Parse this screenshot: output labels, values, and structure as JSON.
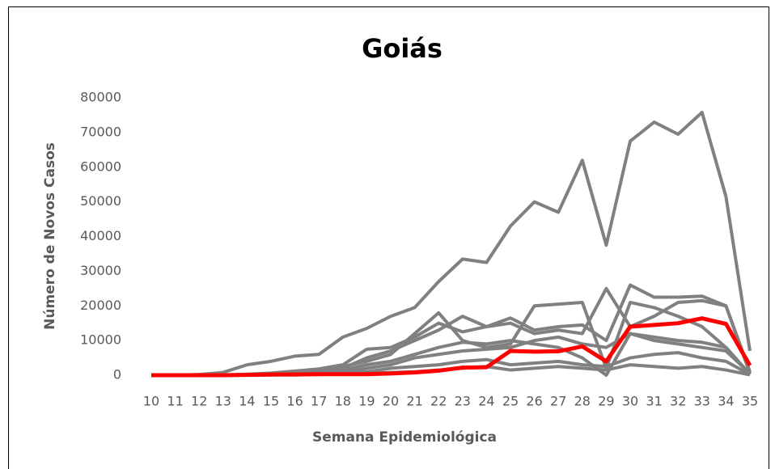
{
  "chart_data": {
    "type": "line",
    "title": "Goiás",
    "x_label": "Semana Epidemiológica",
    "y_label": "Número de Novos Casos",
    "categories": [
      "10",
      "11",
      "12",
      "13",
      "14",
      "15",
      "16",
      "17",
      "18",
      "19",
      "20",
      "21",
      "22",
      "23",
      "24",
      "25",
      "26",
      "27",
      "28",
      "29",
      "30",
      "31",
      "32",
      "33",
      "34",
      "35"
    ],
    "ylim": [
      0,
      80000
    ],
    "yticks": [
      0,
      10000,
      20000,
      30000,
      40000,
      50000,
      60000,
      70000,
      80000
    ],
    "grid": false,
    "series": [
      {
        "color": "#808080",
        "values": [
          0,
          0,
          200,
          800,
          3000,
          4000,
          5500,
          6000,
          11000,
          13500,
          17000,
          19500,
          27000,
          33500,
          32500,
          43000,
          50000,
          47000,
          62000,
          37500,
          67500,
          73000,
          69500,
          75800,
          51500,
          7000
        ]
      },
      {
        "color": "#808080",
        "values": [
          0,
          0,
          0,
          100,
          300,
          600,
          1200,
          1800,
          3000,
          7500,
          8000,
          11000,
          15000,
          12500,
          14000,
          16500,
          13000,
          14000,
          14500,
          10000,
          26000,
          22500,
          22500,
          22800,
          20000,
          500
        ]
      },
      {
        "color": "#808080",
        "values": [
          0,
          0,
          0,
          0,
          200,
          500,
          1000,
          1500,
          2500,
          4000,
          6000,
          12000,
          18000,
          10000,
          8000,
          9000,
          20000,
          20500,
          21000,
          2000,
          21000,
          19500,
          17000,
          14000,
          8000,
          200
        ]
      },
      {
        "color": "#808080",
        "values": [
          0,
          0,
          0,
          0,
          100,
          300,
          600,
          1000,
          2000,
          5000,
          7000,
          10000,
          13000,
          17000,
          14000,
          15000,
          12000,
          13000,
          12000,
          25000,
          14000,
          17000,
          21000,
          21500,
          20000,
          1000
        ]
      },
      {
        "color": "#808080",
        "values": [
          0,
          0,
          0,
          0,
          100,
          200,
          500,
          800,
          1500,
          3000,
          4000,
          6000,
          8000,
          9500,
          9000,
          10000,
          9000,
          8000,
          5000,
          0,
          12000,
          10000,
          9000,
          8000,
          7000,
          500
        ]
      },
      {
        "color": "#808080",
        "values": [
          0,
          0,
          0,
          0,
          50,
          100,
          200,
          300,
          500,
          1000,
          2000,
          2500,
          3000,
          4000,
          4500,
          3000,
          3500,
          4000,
          3000,
          2500,
          5000,
          6000,
          6500,
          5000,
          4000,
          200
        ]
      },
      {
        "color": "#808080",
        "values": [
          0,
          0,
          0,
          0,
          50,
          100,
          100,
          200,
          300,
          500,
          800,
          1000,
          1500,
          2000,
          2500,
          1500,
          2000,
          2500,
          2000,
          1500,
          3000,
          2500,
          2000,
          2500,
          1500,
          100
        ]
      },
      {
        "color": "#808080",
        "values": [
          0,
          0,
          0,
          0,
          0,
          100,
          200,
          300,
          800,
          2000,
          3000,
          5000,
          6000,
          7000,
          7500,
          8000,
          10000,
          11000,
          9000,
          8000,
          12000,
          11000,
          10000,
          9500,
          8000,
          300
        ]
      },
      {
        "color": "#ff0000",
        "values": [
          0,
          0,
          0,
          0,
          100,
          200,
          200,
          300,
          300,
          300,
          500,
          800,
          1300,
          2200,
          2300,
          7000,
          6800,
          6900,
          8300,
          4000,
          14000,
          14500,
          15000,
          16400,
          14800,
          2800
        ]
      }
    ]
  }
}
